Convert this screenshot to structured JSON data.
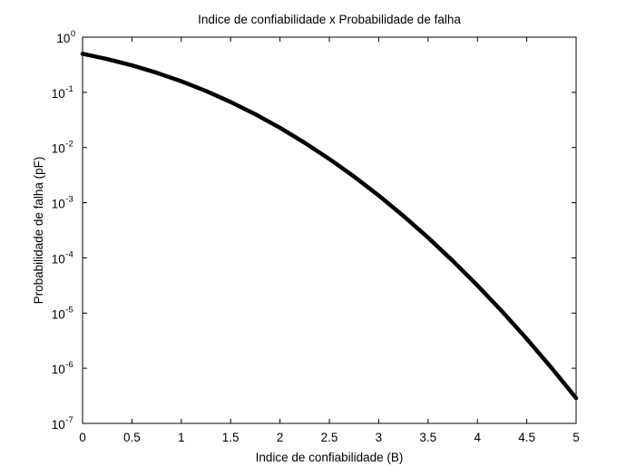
{
  "chart_data": {
    "type": "line",
    "title": "Indice de confiabilidade x Probabilidade de falha",
    "xlabel": "Indice de confiabilidade (B)",
    "ylabel": "Probabilidade de falha (pF)",
    "xlim": [
      0,
      5
    ],
    "ylim": [
      1e-07,
      1
    ],
    "yscale": "log",
    "grid": false,
    "x_ticks": [
      {
        "value": 0,
        "label": "0"
      },
      {
        "value": 0.5,
        "label": "0.5"
      },
      {
        "value": 1,
        "label": "1"
      },
      {
        "value": 1.5,
        "label": "1.5"
      },
      {
        "value": 2,
        "label": "2"
      },
      {
        "value": 2.5,
        "label": "2.5"
      },
      {
        "value": 3,
        "label": "3"
      },
      {
        "value": 3.5,
        "label": "3.5"
      },
      {
        "value": 4,
        "label": "4"
      },
      {
        "value": 4.5,
        "label": "4.5"
      },
      {
        "value": 5,
        "label": "5"
      }
    ],
    "y_ticks": [
      {
        "value": 1,
        "base": "10",
        "exp": "0"
      },
      {
        "value": 0.1,
        "base": "10",
        "exp": "-1"
      },
      {
        "value": 0.01,
        "base": "10",
        "exp": "-2"
      },
      {
        "value": 0.001,
        "base": "10",
        "exp": "-3"
      },
      {
        "value": 0.0001,
        "base": "10",
        "exp": "-4"
      },
      {
        "value": 1e-05,
        "base": "10",
        "exp": "-5"
      },
      {
        "value": 1e-06,
        "base": "10",
        "exp": "-6"
      },
      {
        "value": 1e-07,
        "base": "10",
        "exp": "-7"
      }
    ],
    "series": [
      {
        "color": "#000000",
        "x": [
          0,
          0.25,
          0.5,
          0.75,
          1,
          1.25,
          1.5,
          1.75,
          2,
          2.25,
          2.5,
          2.75,
          3,
          3.25,
          3.5,
          3.75,
          4,
          4.25,
          4.5,
          4.75,
          5
        ],
        "y": [
          0.5,
          0.401,
          0.309,
          0.227,
          0.159,
          0.106,
          0.0668,
          0.0401,
          0.0228,
          0.0122,
          0.0062,
          0.00298,
          0.00135,
          0.000577,
          0.000233,
          8.84e-05,
          3.17e-05,
          1.07e-05,
          3.4e-06,
          1.02e-06,
          2.87e-07
        ]
      }
    ]
  }
}
